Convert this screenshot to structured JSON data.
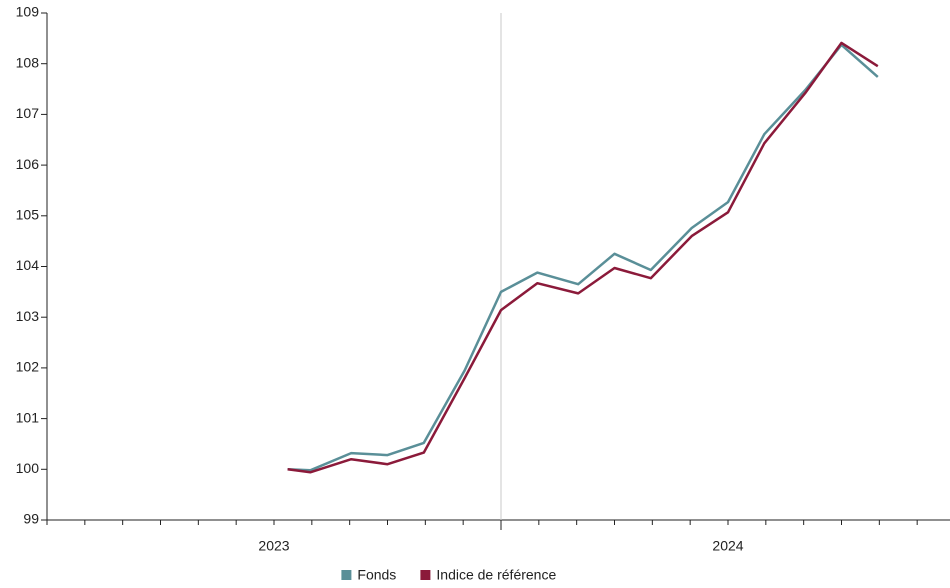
{
  "chart_data": {
    "type": "line",
    "x": [
      2023.53,
      2023.58,
      2023.67,
      2023.75,
      2023.83,
      2023.92,
      2024.0,
      2024.08,
      2024.17,
      2024.25,
      2024.33,
      2024.42,
      2024.5,
      2024.58,
      2024.67,
      2024.75,
      2024.83
    ],
    "series": [
      {
        "name": "Fonds",
        "color": "#5a8f98",
        "values": [
          100.0,
          99.98,
          100.32,
          100.28,
          100.52,
          101.95,
          103.5,
          103.88,
          103.65,
          104.25,
          103.93,
          104.76,
          105.27,
          106.61,
          107.48,
          108.37,
          107.74
        ]
      },
      {
        "name": "Indice de référence",
        "color": "#8b1a3a",
        "values": [
          100.0,
          99.94,
          100.2,
          100.1,
          100.33,
          101.8,
          103.14,
          103.67,
          103.47,
          103.97,
          103.77,
          104.6,
          105.07,
          106.43,
          107.42,
          108.41,
          107.95
        ]
      }
    ],
    "xlim": [
      2023,
      2025
    ],
    "xticks": [
      {
        "value": 2023.5,
        "label": "2023"
      },
      {
        "value": 2024.5,
        "label": "2024"
      }
    ],
    "vline": 2024,
    "ylim": [
      99,
      109
    ],
    "yticks": [
      99,
      100,
      101,
      102,
      103,
      104,
      105,
      106,
      107,
      108,
      109
    ],
    "legend": "bottom"
  }
}
